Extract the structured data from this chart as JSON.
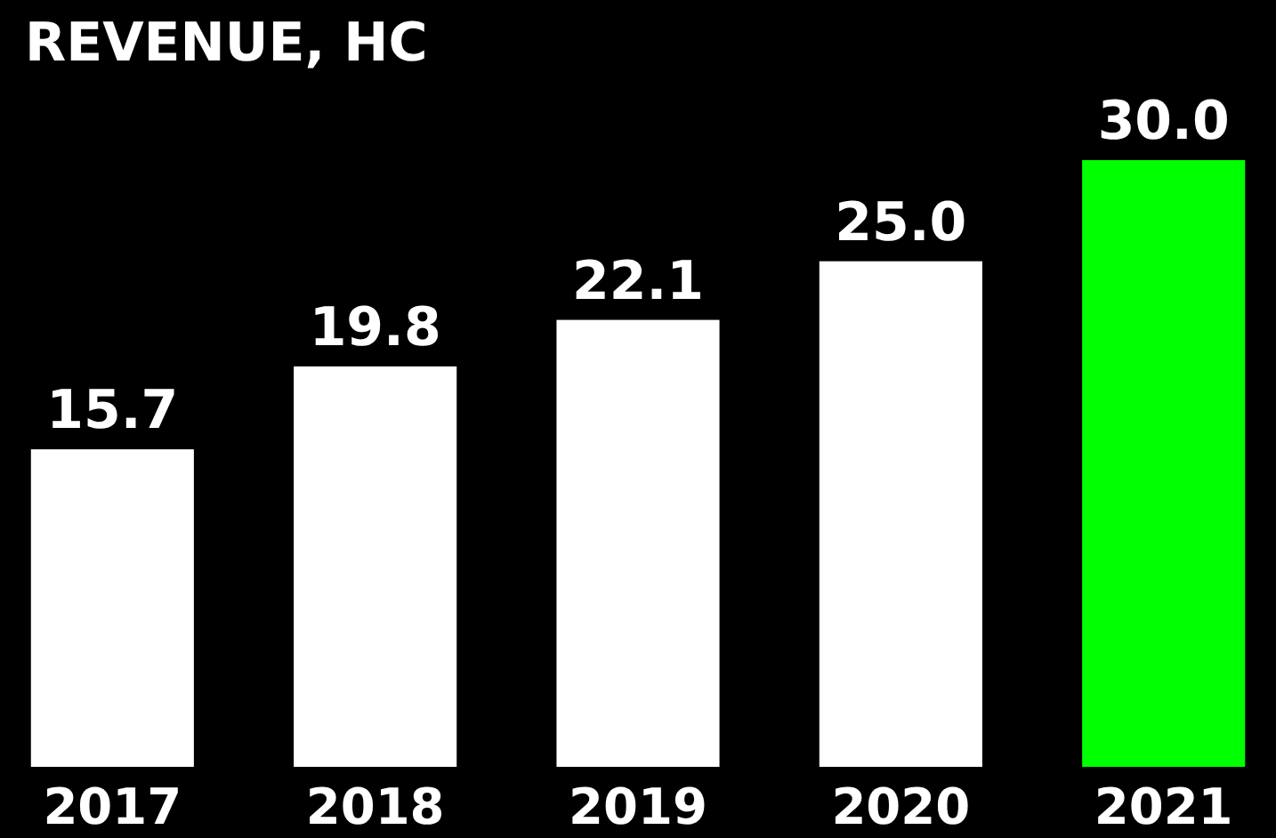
{
  "chart_data": {
    "type": "bar",
    "title": "REVENUE, HC",
    "categories": [
      "2017",
      "2018",
      "2019",
      "2020",
      "2021"
    ],
    "values": [
      15.7,
      19.8,
      22.1,
      25.0,
      30.0
    ],
    "colors": [
      "#ffffff",
      "#ffffff",
      "#ffffff",
      "#ffffff",
      "#00ff00"
    ],
    "value_labels": [
      "15.7",
      "19.8",
      "22.1",
      "25.0",
      "30.0"
    ]
  }
}
